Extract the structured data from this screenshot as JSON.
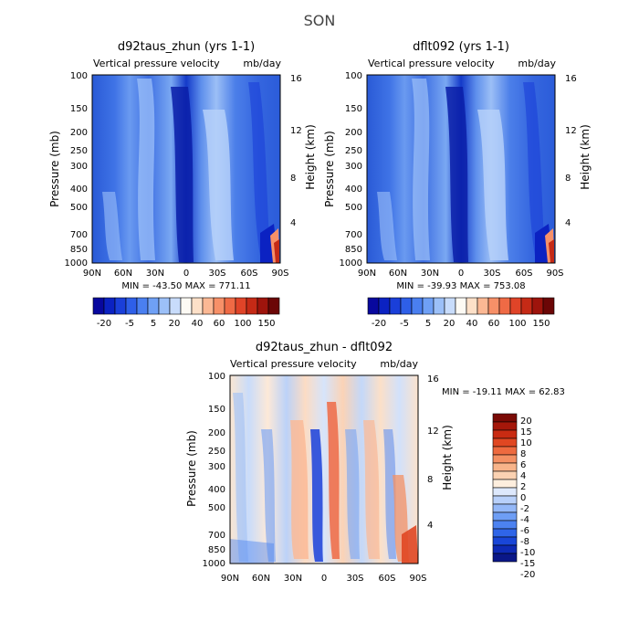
{
  "suptitle": "SON",
  "colors": {
    "neg_levels": [
      "#08089e",
      "#0b22c2",
      "#1a3fd9",
      "#2e5fe8",
      "#4a7ff0",
      "#6fa0f5",
      "#9cc0f8",
      "#c8dcfb"
    ],
    "pos_levels": [
      "#fdfaf4",
      "#fde0c8",
      "#fbb894",
      "#f79068",
      "#ef6a45",
      "#e04428",
      "#c52a16",
      "#9e140c",
      "#6b0606"
    ],
    "diff_neg": [
      "#0a1788",
      "#0e2ab5",
      "#1946d8",
      "#2f65e8",
      "#4c82f0",
      "#6e9ef5",
      "#94b8f8",
      "#b8d0fa",
      "#dde8fc"
    ],
    "diff_pos": [
      "#fdeede",
      "#fbd2b2",
      "#f8b48a",
      "#f49063",
      "#ee6a3f",
      "#e04722",
      "#c92b12",
      "#a5170a",
      "#7a0a05"
    ]
  },
  "chart_data": [
    {
      "type": "contour",
      "title": "d92taus_zhun (yrs 1-1)",
      "left_label": "Vertical pressure velocity",
      "right_label": "mb/day",
      "xlabel": "",
      "ylabel": "Pressure (mb)",
      "ylabel_right": "Height (km)",
      "x_ticks": [
        "90N",
        "60N",
        "30N",
        "0",
        "30S",
        "60S",
        "90S"
      ],
      "y_ticks": [
        "100",
        "150",
        "200",
        "250",
        "300",
        "400",
        "500",
        "700",
        "850",
        "1000"
      ],
      "y_right_ticks": [
        "16",
        "12",
        "8",
        "4"
      ],
      "min_max_text": "MIN = -43.50   MAX = 771.11",
      "colorbar_labels": [
        "-20",
        "-5",
        "5",
        "20",
        "40",
        "60",
        "100",
        "150"
      ]
    },
    {
      "type": "contour",
      "title": "dflt092 (yrs 1-1)",
      "left_label": "Vertical pressure velocity",
      "right_label": "mb/day",
      "xlabel": "",
      "ylabel": "Pressure (mb)",
      "ylabel_right": "Height (km)",
      "x_ticks": [
        "90N",
        "60N",
        "30N",
        "0",
        "30S",
        "60S",
        "90S"
      ],
      "y_ticks": [
        "100",
        "150",
        "200",
        "250",
        "300",
        "400",
        "500",
        "700",
        "850",
        "1000"
      ],
      "y_right_ticks": [
        "16",
        "12",
        "8",
        "4"
      ],
      "min_max_text": "MIN = -39.93   MAX = 753.08",
      "colorbar_labels": [
        "-20",
        "-5",
        "5",
        "20",
        "40",
        "60",
        "100",
        "150"
      ]
    },
    {
      "type": "contour",
      "title": "d92taus_zhun - dflt092",
      "left_label": "Vertical pressure velocity",
      "right_label": "mb/day",
      "xlabel": "",
      "ylabel": "Pressure (mb)",
      "ylabel_right": "Height (km)",
      "x_ticks": [
        "90N",
        "60N",
        "30N",
        "0",
        "30S",
        "60S",
        "90S"
      ],
      "y_ticks": [
        "100",
        "150",
        "200",
        "250",
        "300",
        "400",
        "500",
        "700",
        "850",
        "1000"
      ],
      "y_right_ticks": [
        "16",
        "12",
        "8",
        "4"
      ],
      "min_max_text": "MIN = -19.11   MAX =  62.83",
      "colorbar_labels": [
        "20",
        "15",
        "10",
        "8",
        "6",
        "4",
        "2",
        "0",
        "-2",
        "-4",
        "-6",
        "-8",
        "-10",
        "-15",
        "-20"
      ]
    }
  ]
}
